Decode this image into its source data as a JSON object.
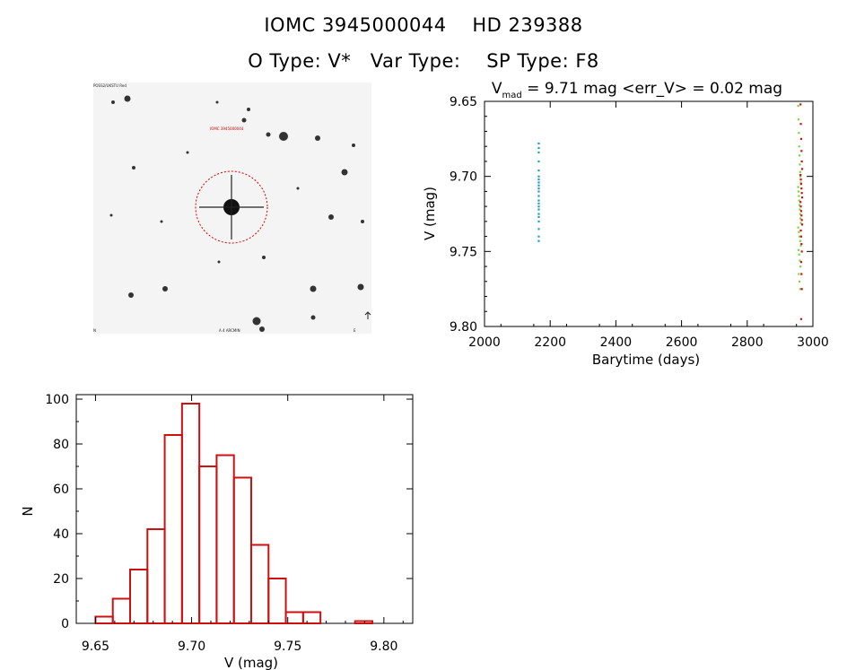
{
  "header": {
    "identifier_line": "IOMC 3945000044    HD 239388",
    "type_line": "O Type: V*   Var Type:    SP Type: F8"
  },
  "finder": {
    "top_left_label": "POSS2/UKSTU Red",
    "target_label": "IOMC 3945000044",
    "bottom_label": "A 4 ARCMIN",
    "bottom_left_label": "N",
    "bottom_right_label": "E",
    "colors": {
      "circle": "#dd0000",
      "star": "#111111",
      "background": "#f4f4f4"
    }
  },
  "chart_data": [
    {
      "type": "scatter",
      "title": "V_mad = 9.71 mag <err_V> = 0.02 mag",
      "title_parts": {
        "prefix": "V",
        "subscript": "mad",
        "rest": " = 9.71 mag <err_V> = 0.02 mag"
      },
      "xlabel": "Barytime (days)",
      "ylabel": "V (mag)",
      "xlim": [
        2000,
        3000
      ],
      "ylim": [
        9.8,
        9.65
      ],
      "y_inverted": true,
      "x_ticks": [
        2000,
        2200,
        2400,
        2600,
        2800,
        3000
      ],
      "x_tick_labels": [
        "2000",
        "2200",
        "2400",
        "2600",
        "2800",
        "3000"
      ],
      "y_ticks": [
        9.65,
        9.7,
        9.75,
        9.8
      ],
      "y_tick_labels": [
        "9.65",
        "9.70",
        "9.75",
        "9.80"
      ],
      "grid": false,
      "series": [
        {
          "color": "#1a9fc9",
          "x": [
            2165,
            2165,
            2165,
            2165,
            2165,
            2165,
            2165,
            2165,
            2165,
            2165,
            2165,
            2165,
            2165,
            2165,
            2165,
            2165,
            2165,
            2165,
            2165,
            2165,
            2165,
            2165
          ],
          "y": [
            9.678,
            9.681,
            9.684,
            9.69,
            9.696,
            9.7,
            9.702,
            9.704,
            9.706,
            9.708,
            9.71,
            9.713,
            9.716,
            9.718,
            9.72,
            9.722,
            9.725,
            9.727,
            9.73,
            9.735,
            9.74,
            9.743
          ]
        },
        {
          "color": "#7fd33a",
          "x": [
            2955,
            2956,
            2957,
            2958,
            2959,
            2960,
            2961,
            2962,
            2963,
            2955,
            2956,
            2957,
            2958,
            2959,
            2960,
            2961,
            2962,
            2963,
            2955,
            2957,
            2959,
            2961,
            2963,
            2956,
            2958,
            2960,
            2962,
            2957,
            2959,
            2961
          ],
          "y": [
            9.653,
            9.662,
            9.671,
            9.68,
            9.686,
            9.692,
            9.697,
            9.7,
            9.704,
            9.707,
            9.71,
            9.713,
            9.716,
            9.719,
            9.722,
            9.725,
            9.728,
            9.731,
            9.734,
            9.737,
            9.74,
            9.743,
            9.746,
            9.749,
            9.752,
            9.756,
            9.76,
            9.765,
            9.77,
            9.775
          ]
        },
        {
          "color": "#cc1111",
          "x": [
            2962,
            2963,
            2964,
            2965,
            2966,
            2967,
            2962,
            2963,
            2964,
            2965,
            2966,
            2967,
            2962,
            2963,
            2964,
            2965,
            2966,
            2967,
            2963,
            2964,
            2965,
            2966,
            2964,
            2965,
            2966,
            2964
          ],
          "y": [
            9.652,
            9.665,
            9.675,
            9.683,
            9.69,
            9.695,
            9.699,
            9.702,
            9.705,
            9.708,
            9.711,
            9.714,
            9.717,
            9.72,
            9.723,
            9.726,
            9.729,
            9.732,
            9.736,
            9.74,
            9.745,
            9.75,
            9.757,
            9.765,
            9.775,
            9.795
          ]
        }
      ]
    },
    {
      "type": "bar",
      "subtype": "histogram",
      "title": "",
      "xlabel": "V (mag)",
      "ylabel": "N",
      "xlim": [
        9.64,
        9.815
      ],
      "ylim": [
        0,
        102
      ],
      "x_ticks": [
        9.65,
        9.7,
        9.75,
        9.8
      ],
      "x_tick_labels": [
        "9.65",
        "9.70",
        "9.75",
        "9.80"
      ],
      "y_ticks": [
        0,
        20,
        40,
        60,
        80,
        100
      ],
      "y_tick_labels": [
        "0",
        "20",
        "40",
        "60",
        "80",
        "100"
      ],
      "grid": false,
      "bar_color": "#cc1111",
      "bin_edges": [
        9.65,
        9.659,
        9.668,
        9.677,
        9.686,
        9.695,
        9.704,
        9.713,
        9.722,
        9.731,
        9.74,
        9.749,
        9.758,
        9.767,
        9.776,
        9.785,
        9.794
      ],
      "counts": [
        3,
        11,
        24,
        42,
        84,
        98,
        70,
        75,
        65,
        35,
        20,
        5,
        5,
        0,
        0,
        1
      ]
    }
  ]
}
